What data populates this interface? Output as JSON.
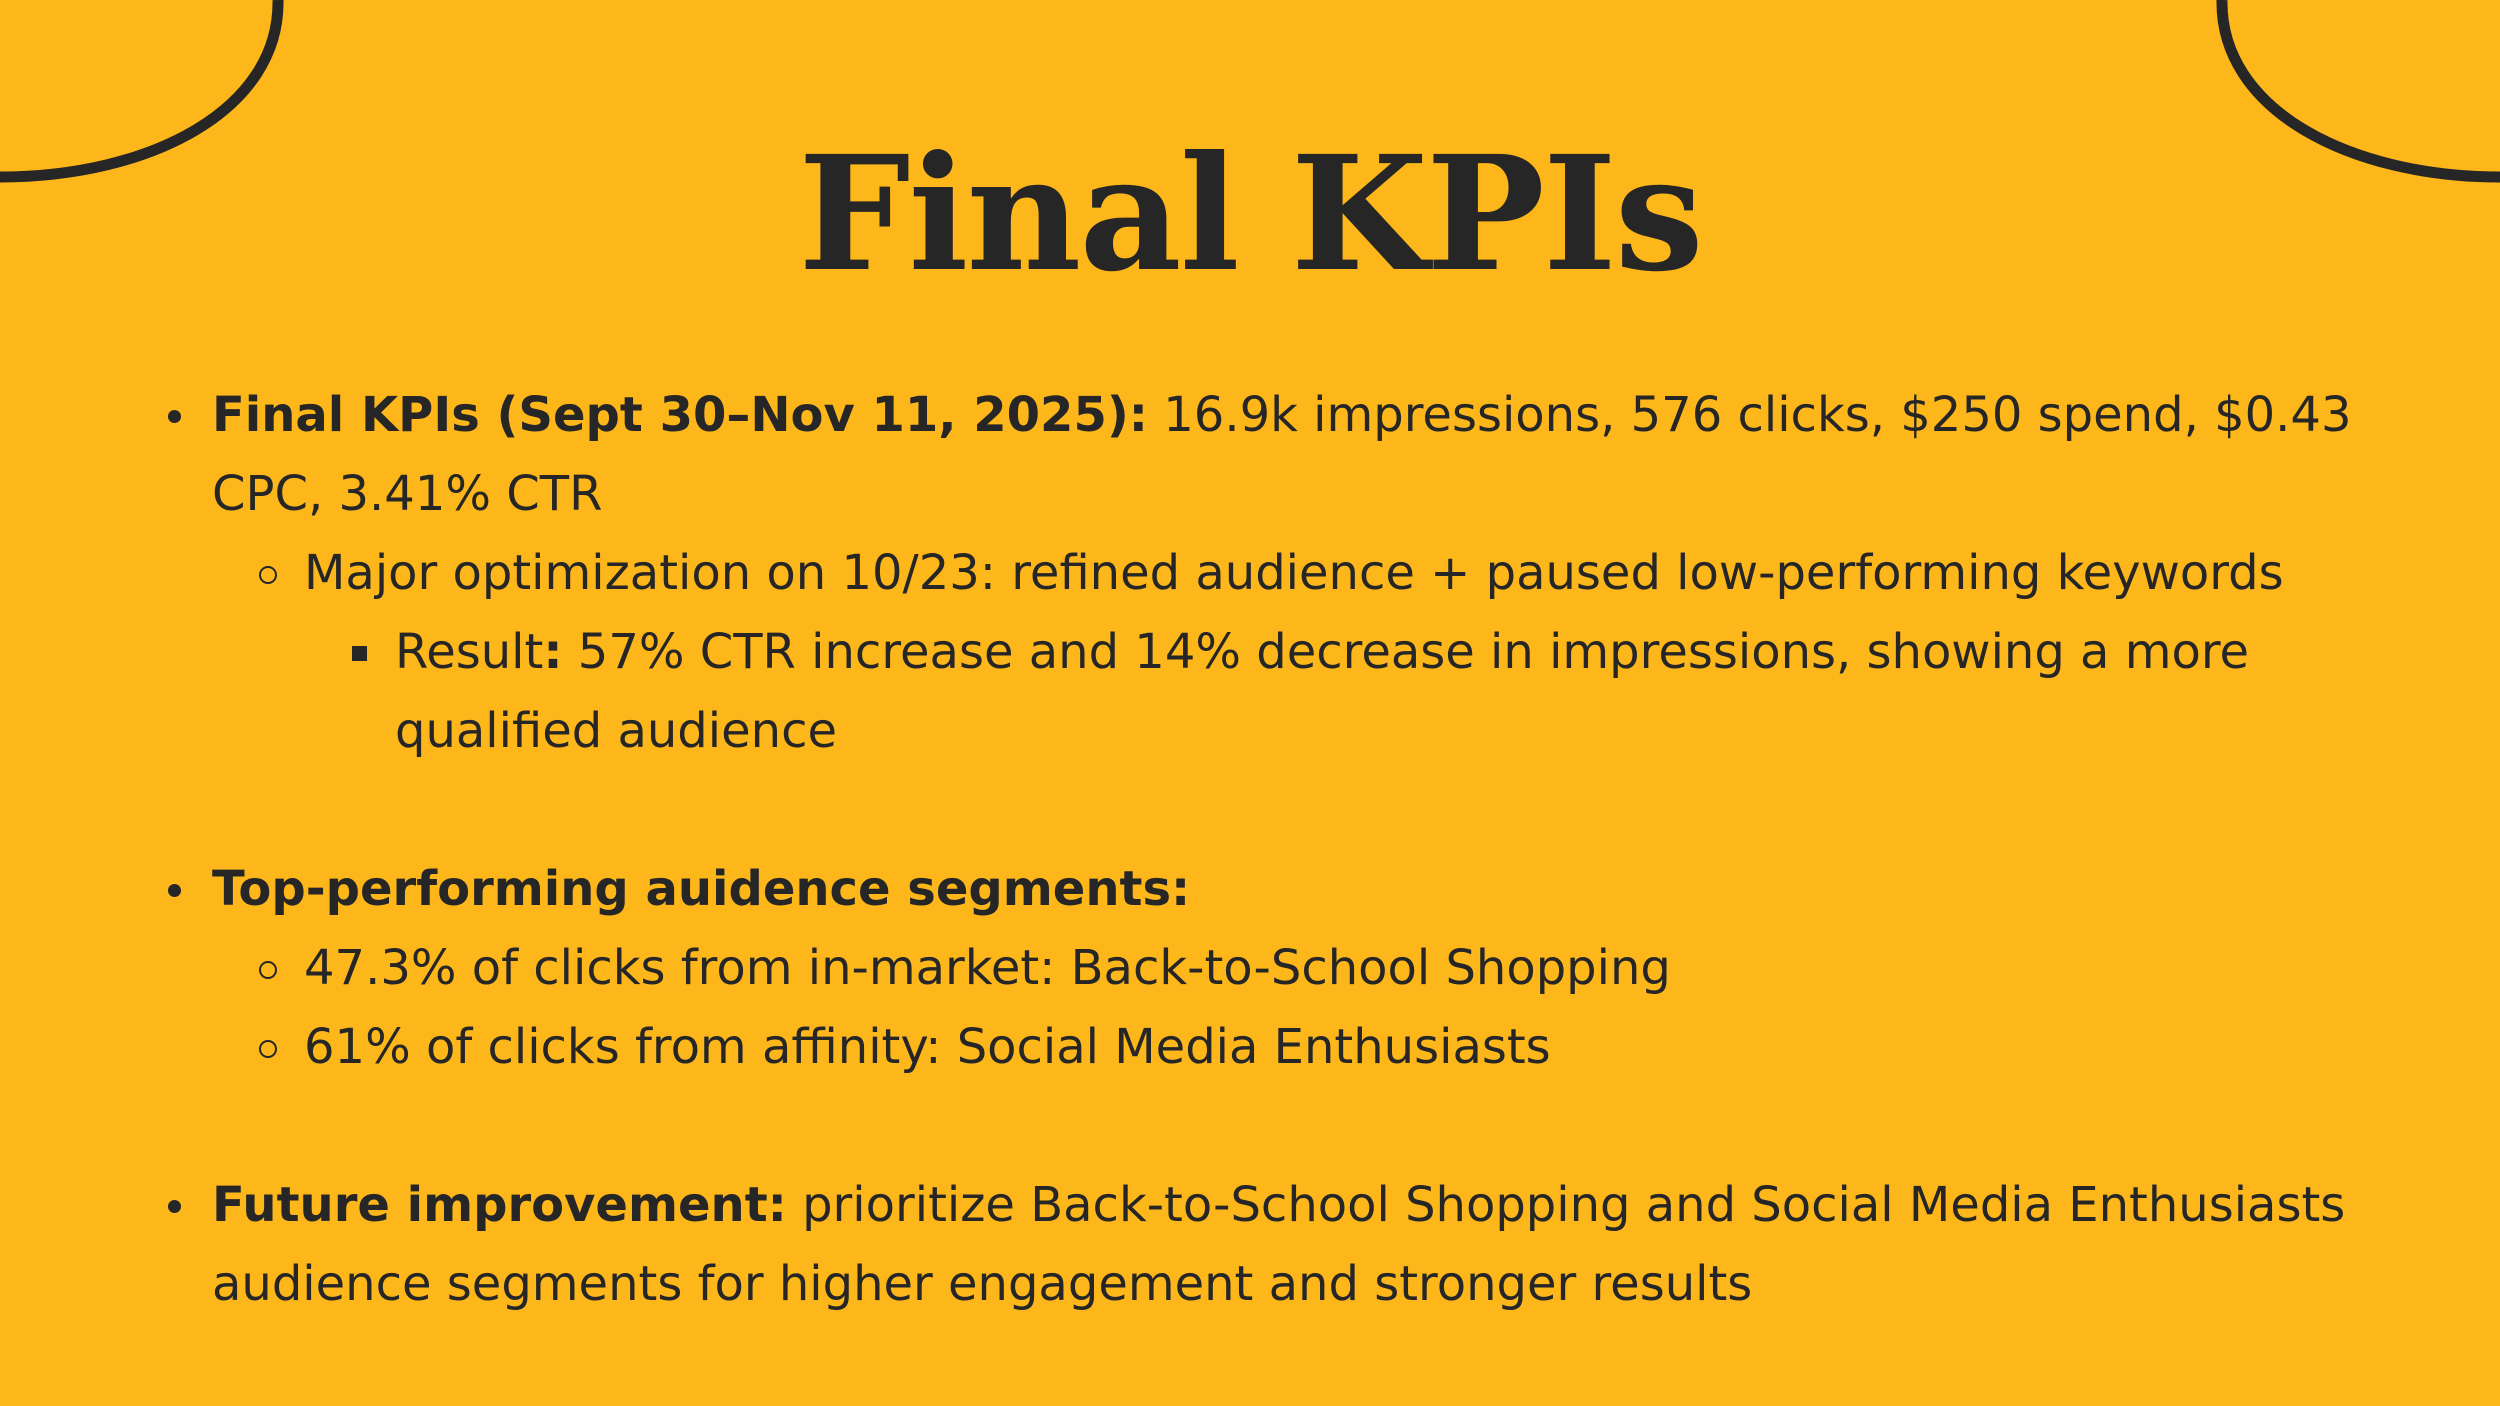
{
  "slide": {
    "title": "Final KPIs",
    "bullets": {
      "kpis_label": "Final KPIs (Sept 30–Nov 11, 2025):",
      "kpis_text": " 16.9k impressions, 576 clicks, $250 spend, $0.43 CPC, 3.41% CTR",
      "optimization_text": "Major optimization on 10/23: refined audience + paused low-performing keywords",
      "result_label": "Result",
      "result_colon": ":",
      "result_text": " 57% CTR increase and 14% decrease in impressions, showing a more qualified audience",
      "segments_label": "Top-performing auidence segments:",
      "segment_1": "47.3% of clicks from in-market: Back-to-School Shopping",
      "segment_2": "61% of clicks from affinity: Social Media Enthusiasts",
      "future_label": "Future improvement:",
      "future_text": " prioritize Back-to-School Shopping and Social Media Enthusiasts audience segments for higher engagement and stronger results"
    }
  },
  "colors": {
    "background": "#FDB71A",
    "text": "#262626"
  }
}
